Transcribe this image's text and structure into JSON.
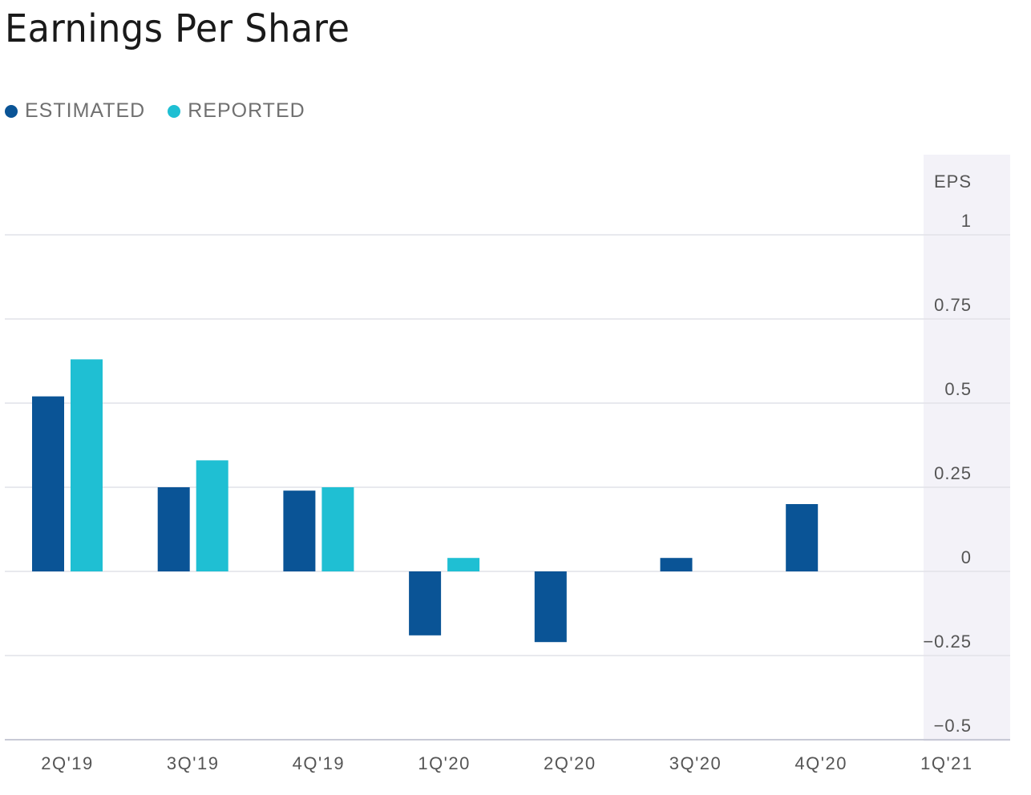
{
  "chart_data": {
    "type": "bar",
    "title": "Earnings Per Share",
    "categories": [
      "2Q'19",
      "3Q'19",
      "4Q'19",
      "1Q'20",
      "2Q'20",
      "3Q'20",
      "4Q'20",
      "1Q'21"
    ],
    "series": [
      {
        "name": "ESTIMATED",
        "color": "#0a5496",
        "values": [
          0.52,
          0.25,
          0.24,
          -0.19,
          -0.21,
          0.04,
          0.2,
          null
        ]
      },
      {
        "name": "REPORTED",
        "color": "#1fbfd3",
        "values": [
          0.63,
          0.33,
          0.25,
          0.04,
          null,
          null,
          null,
          null
        ]
      }
    ],
    "ylabel": "EPS",
    "ylim": [
      -0.5,
      1
    ],
    "yticks": [
      1,
      0.75,
      0.5,
      0.25,
      0,
      -0.25,
      -0.5
    ],
    "ytick_labels": [
      "1",
      "0.75",
      "0.5",
      "0.25",
      "0",
      "−0.25",
      "−0.5"
    ],
    "grid": true,
    "legend_position": "top-left",
    "axis_side": "right"
  }
}
